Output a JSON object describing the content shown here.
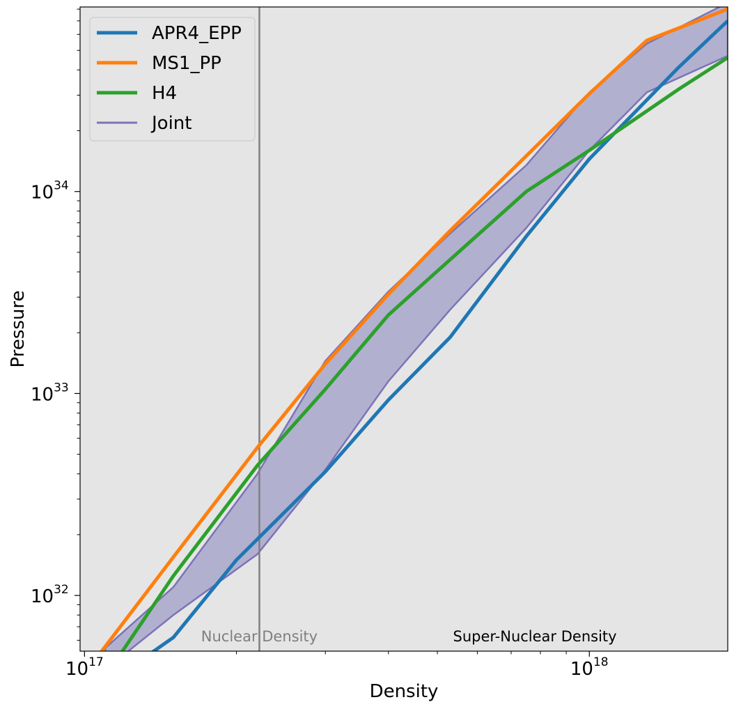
{
  "chart_data": {
    "type": "line",
    "xlabel": "Density",
    "ylabel": "Pressure",
    "xscale": "log",
    "yscale": "log",
    "xlim": [
      98000000000000000,
      1880000000000000000
    ],
    "ylim": [
      53000000000000000000000000000000,
      82000000000000000000000000000000000
    ],
    "x_ticks": [
      {
        "value": 100000000000000000,
        "base": "10",
        "exp": "17"
      },
      {
        "value": 1000000000000000000,
        "base": "10",
        "exp": "18"
      }
    ],
    "y_ticks": [
      {
        "value": 1e+32,
        "base": "10",
        "exp": "32"
      },
      {
        "value": 1e+33,
        "base": "10",
        "exp": "33"
      },
      {
        "value": 1e+34,
        "base": "10",
        "exp": "34"
      }
    ],
    "grid": false,
    "background": "#e5e5e5",
    "legend_position": "top-left",
    "series": [
      {
        "name": "APR4_EPP",
        "color": "#1f77b4",
        "x": [
          1.1e+17,
          1.5e+17,
          2e+17,
          3e+17,
          4e+17,
          5.3e+17,
          7.5e+17,
          1e+18,
          1.5e+18,
          1.88e+18
        ],
        "y": [
          3.6e+31,
          6.2e+31,
          1.5e+32,
          4.1e+32,
          9.3e+32,
          1.9e+33,
          6e+33,
          1.45e+34,
          4.1e+34,
          7e+34
        ]
      },
      {
        "name": "MS1_PP",
        "color": "#ff7f0e",
        "x": [
          1e+17,
          1.5e+17,
          2.2e+17,
          3e+17,
          4e+17,
          5.3e+17,
          7.5e+17,
          1e+18,
          1.3e+18,
          1.88e+18
        ],
        "y": [
          4.1e+31,
          1.55e+32,
          5.4e+32,
          1.4e+33,
          3.1e+33,
          6.4e+33,
          1.5e+34,
          3.05e+34,
          5.6e+34,
          8e+34
        ]
      },
      {
        "name": "H4",
        "color": "#2ca02c",
        "x": [
          1e+17,
          1.5e+17,
          2.2e+17,
          3e+17,
          4e+17,
          5.4e+17,
          7.5e+17,
          1e+18,
          1.5e+18,
          1.88e+18
        ],
        "y": [
          2.8e+31,
          1.25e+32,
          4.4e+32,
          1.05e+33,
          2.45e+33,
          4.8e+33,
          1e+34,
          1.6e+34,
          3.2e+34,
          4.6e+34
        ]
      }
    ],
    "bands": [
      {
        "name": "Joint",
        "color": "#7b73b8",
        "fill": "#b2b0cf",
        "x": [
          1.1e+17,
          1.5e+17,
          2.2e+17,
          3e+17,
          4e+17,
          5.3e+17,
          7.5e+17,
          1e+18,
          1.3e+18,
          1.88e+18
        ],
        "lower": [
          4.3e+31,
          8e+31,
          1.6e+32,
          4.2e+32,
          1.15e+33,
          2.6e+33,
          6.6e+33,
          1.6e+34,
          3.1e+34,
          4.7e+34
        ],
        "upper": [
          5.5e+31,
          1.1e+32,
          4e+32,
          1.45e+33,
          3.2e+33,
          6.2e+33,
          1.35e+34,
          3.1e+34,
          5.4e+34,
          8.6e+34
        ]
      }
    ],
    "vline": {
      "x": 222000000000000000,
      "color": "#7f7f7f"
    },
    "annotations": [
      {
        "text": "Nuclear Density",
        "x": 2.22e+17,
        "color": "#7f7f7f"
      },
      {
        "text": "Super-Nuclear Density",
        "x": 7.8e+17,
        "color": "#000000"
      }
    ]
  }
}
